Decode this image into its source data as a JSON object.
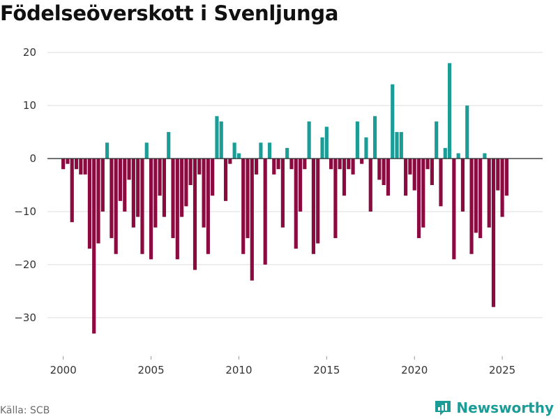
{
  "header": {
    "title": "Födelseöverskott i Svenljunga"
  },
  "footer": {
    "source": "Källa: SCB",
    "brand": "Newsworthy"
  },
  "colors": {
    "positive": "#1b9c97",
    "negative": "#8b0a3f",
    "grid": "#dcdcdc",
    "zero_line": "#333333"
  },
  "chart_data": {
    "type": "bar",
    "title": "Födelseöverskott i Svenljunga",
    "xlabel": "",
    "ylabel": "",
    "frequency": "quarterly",
    "start": [
      2000,
      1
    ],
    "xlim": [
      1999.1,
      2027.3
    ],
    "ylim": [
      -37,
      22
    ],
    "yticks": [
      20,
      10,
      0,
      -10,
      -20,
      -30
    ],
    "ytick_labels": [
      "20",
      "10",
      "0",
      "−10",
      "−20",
      "−30"
    ],
    "xticks": [
      2000,
      2005,
      2010,
      2015,
      2020,
      2025
    ],
    "xtick_labels": [
      "2000",
      "2005",
      "2010",
      "2015",
      "2020",
      "2025"
    ],
    "values": [
      -2,
      -1,
      -12,
      -2,
      -3,
      -3,
      -17,
      -33,
      -16,
      -10,
      3,
      -15,
      -18,
      -8,
      -10,
      -4,
      -13,
      -11,
      -18,
      3,
      -19,
      -13,
      -7,
      -11,
      5,
      -15,
      -19,
      -11,
      -9,
      -5,
      -21,
      -3,
      -13,
      -18,
      -7,
      8,
      7,
      -8,
      -1,
      3,
      1,
      -18,
      -15,
      -23,
      -3,
      3,
      -20,
      3,
      -3,
      -2,
      -13,
      2,
      -2,
      -17,
      -10,
      -2,
      7,
      -18,
      -16,
      4,
      6,
      -2,
      -15,
      -2,
      -7,
      -2,
      -3,
      7,
      -1,
      4,
      -10,
      8,
      -4,
      -5,
      -7,
      14,
      5,
      5,
      -7,
      -3,
      -6,
      -15,
      -13,
      -2,
      -5,
      7,
      -9,
      2,
      18,
      -19,
      1,
      -10,
      10,
      -18,
      -14,
      -15,
      1,
      -13,
      -28,
      -6,
      -11,
      -7
    ]
  }
}
